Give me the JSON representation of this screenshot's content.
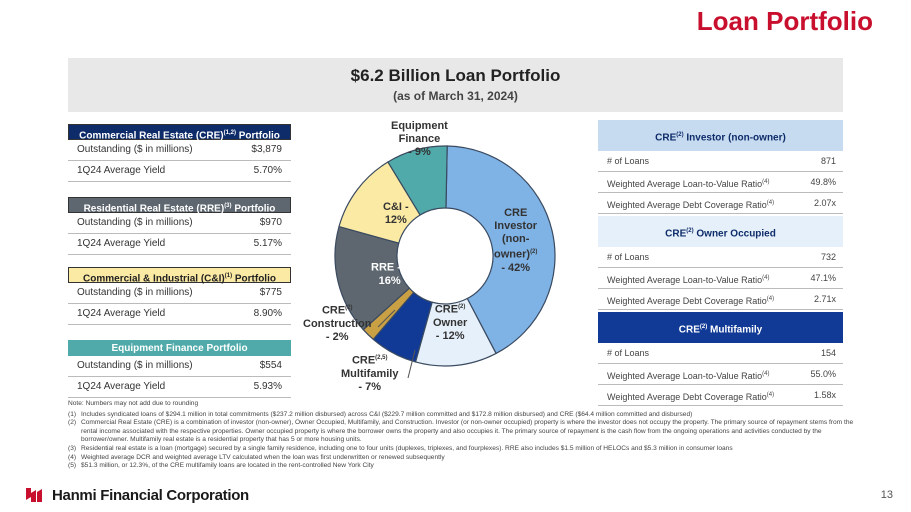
{
  "header": {
    "title": "Loan Portfolio"
  },
  "banner": {
    "title": "$6.2 Billion Loan Portfolio",
    "subtitle": "(as of March 31, 2024)"
  },
  "left_tables": [
    {
      "title": "Commercial Real Estate (CRE)",
      "sup": "(1,2)",
      "suffix": "Portfolio",
      "rows": [
        {
          "label": "Outstanding ($ in millions)",
          "value": "$3,879"
        },
        {
          "label": "1Q24 Average Yield",
          "value": "5.70%"
        }
      ]
    },
    {
      "title": "Residential Real Estate (RRE)",
      "sup": "(3)",
      "suffix": "Portfolio",
      "rows": [
        {
          "label": "Outstanding ($ in millions)",
          "value": "$970"
        },
        {
          "label": "1Q24 Average Yield",
          "value": "5.17%"
        }
      ]
    },
    {
      "title": "Commercial & Industrial (C&I)",
      "sup": "(1)",
      "suffix": "Portfolio",
      "rows": [
        {
          "label": "Outstanding ($ in millions)",
          "value": "$775"
        },
        {
          "label": "1Q24 Average Yield",
          "value": "8.90%"
        }
      ]
    },
    {
      "title": "Equipment Finance Portfolio",
      "sup": "",
      "suffix": "",
      "rows": [
        {
          "label": "Outstanding ($ in millions)",
          "value": "$554"
        },
        {
          "label": "1Q24 Average Yield",
          "value": "5.93%"
        }
      ]
    }
  ],
  "right_tables": [
    {
      "prefix": "CRE",
      "sup": "(2)",
      "title": "Investor (non-owner)",
      "rows": [
        {
          "label": "# of Loans",
          "sup": "",
          "value": "871"
        },
        {
          "label": "Weighted Average Loan-to-Value Ratio",
          "sup": "(4)",
          "value": "49.8%"
        },
        {
          "label": "Weighted Average Debt Coverage Ratio",
          "sup": "(4)",
          "value": "2.07x"
        }
      ]
    },
    {
      "prefix": "CRE",
      "sup": "(2)",
      "title": "Owner Occupied",
      "rows": [
        {
          "label": "# of Loans",
          "sup": "",
          "value": "732"
        },
        {
          "label": "Weighted Average Loan-to-Value Ratio",
          "sup": "(4)",
          "value": "47.1%"
        },
        {
          "label": "Weighted Average Debt Coverage Ratio",
          "sup": "(4)",
          "value": "2.71x"
        }
      ]
    },
    {
      "prefix": "CRE",
      "sup": "(2)",
      "title": "Multifamily",
      "rows": [
        {
          "label": "# of Loans",
          "sup": "",
          "value": "154"
        },
        {
          "label": "Weighted Average Loan-to-Value Ratio",
          "sup": "(4)",
          "value": "55.0%"
        },
        {
          "label": "Weighted Average Debt Coverage Ratio",
          "sup": "(4)",
          "value": "1.58x"
        }
      ]
    }
  ],
  "chart_labels": {
    "investor": {
      "l1": "CRE",
      "l2": "Investor",
      "l3": "(non-",
      "l4": "owner)",
      "sup": "(2)",
      "l5": "- 42%"
    },
    "owner": {
      "l1": "CRE",
      "sup": "(2)",
      "l2": "Owner",
      "l3": "- 12%"
    },
    "multifamily": {
      "l1": "CRE",
      "sup": "(2,5)",
      "l2": "Multifamily",
      "l3": "- 7%"
    },
    "construction": {
      "l1": "CRE",
      "sup": "(2)",
      "l2": "Construction",
      "l3": "- 2%"
    },
    "rre": {
      "l1": "RRE -",
      "sup": "(3)",
      "l2": "16%"
    },
    "ci": {
      "l1": "C&I -",
      "l2": "12%"
    },
    "equipment": {
      "l1": "Equipment",
      "l2": "Finance",
      "l3": "- 9%"
    }
  },
  "chart_data": {
    "type": "pie",
    "title": "$6.2 Billion Loan Portfolio",
    "categories": [
      "CRE Investor (non-owner)",
      "CRE Owner",
      "CRE Multifamily",
      "CRE Construction",
      "RRE",
      "C&I",
      "Equipment Finance"
    ],
    "values": [
      42,
      12,
      7,
      2,
      16,
      12,
      9
    ],
    "colors": [
      "#7fb2e5",
      "#e6f0fa",
      "#103a96",
      "#caa045",
      "#5e6770",
      "#fbeaa4",
      "#4faaa9"
    ]
  },
  "notes": {
    "intro": "Note: Numbers may not add due to rounding",
    "items": [
      {
        "num": "(1)",
        "text": "Includes syndicated loans of $294.1 million in total commitments ($237.2 million disbursed) across C&I ($229.7 million committed and $172.8 million disbursed) and CRE ($64.4 million committed and disbursed)"
      },
      {
        "num": "(2)",
        "text": "Commercial Real Estate (CRE) is a combination of investor (non-owner), Owner Occupied, Multifamily, and Construction. Investor (or non-owner occupied) property is where the investor does not occupy the property. The primary source of repayment stems from the rental income associated with the respective properties. Owner occupied property is where the borrower owns the property and also occupies it. The primary source of repayment is the cash flow from the ongoing operations and activities conducted by the borrower/owner. Multifamily real estate is a residential property that has 5 or more housing units."
      },
      {
        "num": "(3)",
        "text": "Residential real estate is a loan (mortgage) secured by a single family residence, including one to four units (duplexes, triplexes, and fourplexes). RRE also includes $1.5 million of HELOCs and $5.3 million in consumer loans"
      },
      {
        "num": "(4)",
        "text": "Weighted average DCR and weighted average LTV calculated when the loan was first underwritten or renewed subsequently"
      },
      {
        "num": "(5)",
        "text": "$51.3 million, or 12.3%, of the CRE multifamily loans are located in the rent-controlled New York City"
      }
    ]
  },
  "footer": {
    "company": "Hanmi Financial Corporation",
    "page": "13"
  }
}
